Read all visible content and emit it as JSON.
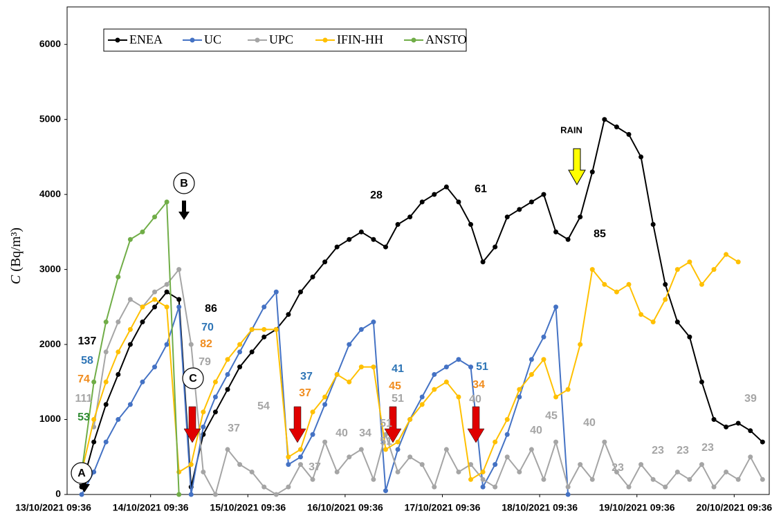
{
  "chart_data": {
    "type": "line",
    "y_label_symbol": "C",
    "y_label_unit": "(Bq/m³)",
    "x": [
      "2021-10-13T13:36",
      "2021-10-13T16:36",
      "2021-10-13T19:36",
      "2021-10-13T22:36",
      "2021-10-14T01:36",
      "2021-10-14T04:36",
      "2021-10-14T07:36",
      "2021-10-14T10:36",
      "2021-10-14T13:36",
      "2021-10-14T16:36",
      "2021-10-14T19:36",
      "2021-10-14T22:36",
      "2021-10-15T01:36",
      "2021-10-15T04:36",
      "2021-10-15T07:36",
      "2021-10-15T10:36",
      "2021-10-15T13:36",
      "2021-10-15T16:36",
      "2021-10-15T19:36",
      "2021-10-15T22:36",
      "2021-10-16T01:36",
      "2021-10-16T04:36",
      "2021-10-16T07:36",
      "2021-10-16T10:36",
      "2021-10-16T13:36",
      "2021-10-16T16:36",
      "2021-10-16T19:36",
      "2021-10-16T22:36",
      "2021-10-17T01:36",
      "2021-10-17T04:36",
      "2021-10-17T07:36",
      "2021-10-17T10:36",
      "2021-10-17T13:36",
      "2021-10-17T16:36",
      "2021-10-17T19:36",
      "2021-10-17T22:36",
      "2021-10-18T01:36",
      "2021-10-18T04:36",
      "2021-10-18T07:36",
      "2021-10-18T10:36",
      "2021-10-18T13:36",
      "2021-10-18T16:36",
      "2021-10-18T19:36",
      "2021-10-18T22:36",
      "2021-10-19T01:36",
      "2021-10-19T04:36",
      "2021-10-19T07:36",
      "2021-10-19T10:36",
      "2021-10-19T13:36",
      "2021-10-19T16:36",
      "2021-10-19T19:36",
      "2021-10-19T22:36",
      "2021-10-20T01:36",
      "2021-10-20T04:36",
      "2021-10-20T07:36",
      "2021-10-20T10:36",
      "2021-10-20T13:36",
      "2021-10-20T16:36"
    ],
    "xlim": [
      "2021-10-13T13:00",
      "2021-10-20T18:15"
    ],
    "xticks": [
      {
        "value": "2021-10-13T09:36",
        "label": "13/10/2021 09:36"
      },
      {
        "value": "2021-10-14T09:36",
        "label": "14/10/2021 09:36"
      },
      {
        "value": "2021-10-15T09:36",
        "label": "15/10/2021 09:36"
      },
      {
        "value": "2021-10-16T09:36",
        "label": "16/10/2021 09:36"
      },
      {
        "value": "2021-10-17T09:36",
        "label": "17/10/2021 09:36"
      },
      {
        "value": "2021-10-18T09:36",
        "label": "18/10/2021 09:36"
      },
      {
        "value": "2021-10-19T09:36",
        "label": "19/10/2021 09:36"
      },
      {
        "value": "2021-10-20T09:36",
        "label": "20/10/2021 09:36"
      }
    ],
    "ylim": [
      0,
      6500
    ],
    "yticks": [
      0,
      1000,
      2000,
      3000,
      4000,
      5000,
      6000
    ],
    "grid": false,
    "legend": "top-left",
    "series": [
      {
        "name": "ENEA",
        "color": "#000000",
        "values": [
          null,
          100,
          700,
          1200,
          1600,
          2000,
          2300,
          2500,
          2700,
          2600,
          100,
          800,
          1100,
          1400,
          1700,
          1900,
          2100,
          2200,
          2400,
          2700,
          2900,
          3100,
          3300,
          3400,
          3500,
          3400,
          3300,
          3600,
          3700,
          3900,
          4000,
          4100,
          3900,
          3600,
          3100,
          3300,
          3700,
          3800,
          3900,
          4000,
          3500,
          3400,
          3700,
          4300,
          5000,
          4900,
          4800,
          4500,
          3600,
          2800,
          2300,
          2100,
          1500,
          1000,
          900,
          950,
          850,
          700
        ]
      },
      {
        "name": "UC",
        "color": "#4472c4",
        "values": [
          null,
          0,
          300,
          700,
          1000,
          1200,
          1500,
          1700,
          2000,
          2500,
          0,
          900,
          1300,
          1600,
          1900,
          2200,
          2500,
          2700,
          400,
          500,
          800,
          1200,
          1600,
          2000,
          2200,
          2300,
          50,
          600,
          1000,
          1300,
          1600,
          1700,
          1800,
          1700,
          100,
          400,
          800,
          1300,
          1800,
          2100,
          2500,
          0,
          null,
          null,
          null,
          null,
          null,
          null,
          null,
          null,
          null,
          null,
          null,
          null,
          null,
          null,
          null,
          null
        ]
      },
      {
        "name": "UPC",
        "color": "#a5a5a5",
        "values": [
          null,
          null,
          900,
          1900,
          2300,
          2600,
          2500,
          2700,
          2800,
          3000,
          2000,
          300,
          0,
          600,
          400,
          300,
          100,
          0,
          100,
          400,
          200,
          700,
          300,
          500,
          600,
          200,
          800,
          300,
          500,
          400,
          100,
          600,
          300,
          400,
          200,
          100,
          500,
          300,
          600,
          200,
          700,
          100,
          400,
          200,
          700,
          300,
          100,
          400,
          200,
          100,
          300,
          200,
          400,
          100,
          300,
          200,
          500,
          200
        ]
      },
      {
        "name": "IFIN-HH",
        "color": "#ffc000",
        "values": [
          null,
          300,
          1000,
          1500,
          1900,
          2200,
          2500,
          2600,
          2500,
          300,
          400,
          1100,
          1500,
          1800,
          2000,
          2200,
          2200,
          2200,
          500,
          600,
          1100,
          1300,
          1600,
          1500,
          1700,
          1700,
          600,
          700,
          1000,
          1200,
          1400,
          1500,
          1300,
          200,
          300,
          700,
          1000,
          1400,
          1600,
          1800,
          1300,
          1400,
          2000,
          3000,
          2800,
          2700,
          2800,
          2400,
          2300,
          2600,
          3000,
          3100,
          2800,
          3000,
          3200,
          3100,
          null,
          null
        ]
      },
      {
        "name": "ANSTO",
        "color": "#70ad47",
        "values": [
          null,
          300,
          1500,
          2300,
          2900,
          3400,
          3500,
          3700,
          3900,
          0,
          null,
          null,
          null,
          null,
          null,
          null,
          null,
          null,
          null,
          null,
          null,
          null,
          null,
          null,
          null,
          null,
          null,
          null,
          null,
          null,
          null,
          null,
          null,
          null,
          null,
          null,
          null,
          null,
          null,
          null,
          null,
          null,
          null,
          null,
          null,
          null,
          null,
          null,
          null,
          null,
          null,
          null,
          null,
          null,
          null,
          null,
          null,
          null
        ]
      }
    ],
    "annotations": [
      {
        "text": "137",
        "color": "#000000"
      },
      {
        "text": "58",
        "color": "#2e75b6"
      },
      {
        "text": "74",
        "color": "#f08c1e"
      },
      {
        "text": "111",
        "color": "#a5a5a5"
      },
      {
        "text": "53",
        "color": "#2e8b32"
      },
      {
        "text": "86",
        "color": "#000000"
      },
      {
        "text": "70",
        "color": "#2e75b6"
      },
      {
        "text": "82",
        "color": "#f08c1e"
      },
      {
        "text": "79",
        "color": "#a5a5a5"
      },
      {
        "text": "37",
        "color": "#a5a5a5"
      },
      {
        "text": "54",
        "color": "#a5a5a5"
      },
      {
        "text": "37",
        "color": "#2e75b6"
      },
      {
        "text": "37",
        "color": "#f08c1e"
      },
      {
        "text": "37",
        "color": "#a5a5a5"
      },
      {
        "text": "40",
        "color": "#a5a5a5"
      },
      {
        "text": "34",
        "color": "#a5a5a5"
      },
      {
        "text": "41",
        "color": "#2e75b6"
      },
      {
        "text": "45",
        "color": "#f08c1e"
      },
      {
        "text": "51",
        "color": "#a5a5a5"
      },
      {
        "text": "51",
        "color": "#a5a5a5"
      },
      {
        "text": "51",
        "color": "#a5a5a5"
      },
      {
        "text": "51",
        "color": "#2e75b6"
      },
      {
        "text": "34",
        "color": "#f08c1e"
      },
      {
        "text": "40",
        "color": "#a5a5a5"
      },
      {
        "text": "40",
        "color": "#a5a5a5"
      },
      {
        "text": "45",
        "color": "#a5a5a5"
      },
      {
        "text": "40",
        "color": "#a5a5a5"
      },
      {
        "text": "28",
        "color": "#000000"
      },
      {
        "text": "61",
        "color": "#000000"
      },
      {
        "text": "85",
        "color": "#000000"
      },
      {
        "text": "23",
        "color": "#a5a5a5"
      },
      {
        "text": "23",
        "color": "#a5a5a5"
      },
      {
        "text": "23",
        "color": "#a5a5a5"
      },
      {
        "text": "23",
        "color": "#a5a5a5"
      },
      {
        "text": "39",
        "color": "#a5a5a5"
      }
    ],
    "markers": [
      "A",
      "B",
      "C"
    ],
    "rain_label": "RAIN"
  }
}
